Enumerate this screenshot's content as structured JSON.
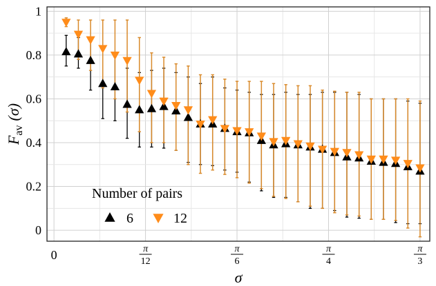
{
  "chart_data": {
    "type": "scatter",
    "title": "",
    "xlabel": "σ",
    "ylabel": {
      "main": "F",
      "sub": "av",
      "arg": "(σ)"
    },
    "xlim": [
      -0.02,
      1.075
    ],
    "ylim": [
      -0.05,
      1.02
    ],
    "grid": true,
    "x_ticks": [
      {
        "pos": 0,
        "label": "0"
      },
      {
        "pos": 0.2618,
        "num": "π",
        "den": "12"
      },
      {
        "pos": 0.5236,
        "num": "π",
        "den": "6"
      },
      {
        "pos": 0.7854,
        "num": "π",
        "den": "4"
      },
      {
        "pos": 1.0472,
        "num": "π",
        "den": "3"
      }
    ],
    "y_ticks": [
      {
        "pos": 0,
        "label": "0"
      },
      {
        "pos": 0.2,
        "label": "0.2"
      },
      {
        "pos": 0.4,
        "label": "0.4"
      },
      {
        "pos": 0.6,
        "label": "0.6"
      },
      {
        "pos": 0.8,
        "label": "0.8"
      },
      {
        "pos": 1.0,
        "label": "1"
      }
    ],
    "legend": {
      "title": "Number of pairs",
      "placement": "bottom-left"
    },
    "x": [
      0.0349,
      0.0698,
      0.1047,
      0.1396,
      0.1745,
      0.2094,
      0.2443,
      0.2793,
      0.3142,
      0.3491,
      0.384,
      0.4189,
      0.4538,
      0.4887,
      0.5236,
      0.5585,
      0.5934,
      0.6283,
      0.6632,
      0.6981,
      0.733,
      0.7679,
      0.8029,
      0.8378,
      0.8727,
      0.9076,
      0.9425,
      0.9774,
      1.0123,
      1.0472
    ],
    "series": [
      {
        "name": "6",
        "color": "#000000",
        "marker": "triangle-up",
        "y": [
          0.815,
          0.805,
          0.775,
          0.67,
          0.655,
          0.575,
          0.55,
          0.555,
          0.565,
          0.545,
          0.515,
          0.485,
          0.485,
          0.465,
          0.45,
          0.445,
          0.41,
          0.39,
          0.395,
          0.39,
          0.38,
          0.37,
          0.355,
          0.335,
          0.33,
          0.315,
          0.31,
          0.305,
          0.29,
          0.27
        ],
        "low": [
          0.75,
          0.74,
          0.64,
          0.51,
          0.5,
          0.42,
          0.38,
          0.38,
          0.375,
          0.365,
          0.31,
          0.3,
          0.295,
          0.275,
          0.265,
          0.22,
          0.18,
          0.15,
          0.15,
          0.13,
          0.1,
          0.1,
          0.09,
          0.06,
          0.055,
          0.05,
          0.05,
          0.035,
          0.03,
          0.03
        ],
        "high": [
          0.89,
          0.88,
          0.88,
          0.83,
          0.81,
          0.74,
          0.72,
          0.73,
          0.74,
          0.72,
          0.7,
          0.67,
          0.7,
          0.65,
          0.64,
          0.63,
          0.62,
          0.62,
          0.63,
          0.62,
          0.62,
          0.63,
          0.63,
          0.63,
          0.62,
          0.6,
          0.6,
          0.6,
          0.59,
          0.58
        ]
      },
      {
        "name": "12",
        "color": "#ff8c1a",
        "error_color": "#d98a2b",
        "marker": "triangle-down",
        "y": [
          0.95,
          0.895,
          0.87,
          0.83,
          0.8,
          0.775,
          0.685,
          0.625,
          0.59,
          0.57,
          0.55,
          0.485,
          0.505,
          0.465,
          0.455,
          0.45,
          0.43,
          0.405,
          0.41,
          0.395,
          0.385,
          0.37,
          0.36,
          0.355,
          0.345,
          0.325,
          0.325,
          0.32,
          0.305,
          0.285
        ],
        "low": [
          0.93,
          0.78,
          0.73,
          0.65,
          0.6,
          0.54,
          0.45,
          0.4,
          0.4,
          0.365,
          0.3,
          0.26,
          0.275,
          0.255,
          0.24,
          0.215,
          0.19,
          0.155,
          0.145,
          0.13,
          0.11,
          0.1,
          0.08,
          0.07,
          0.065,
          0.05,
          0.05,
          0.045,
          0.01,
          -0.03
        ],
        "high": [
          0.97,
          0.96,
          0.96,
          0.96,
          0.96,
          0.96,
          0.88,
          0.81,
          0.79,
          0.76,
          0.75,
          0.71,
          0.71,
          0.69,
          0.68,
          0.68,
          0.68,
          0.67,
          0.665,
          0.66,
          0.66,
          0.64,
          0.635,
          0.63,
          0.63,
          0.6,
          0.6,
          0.6,
          0.6,
          0.59
        ]
      }
    ]
  }
}
